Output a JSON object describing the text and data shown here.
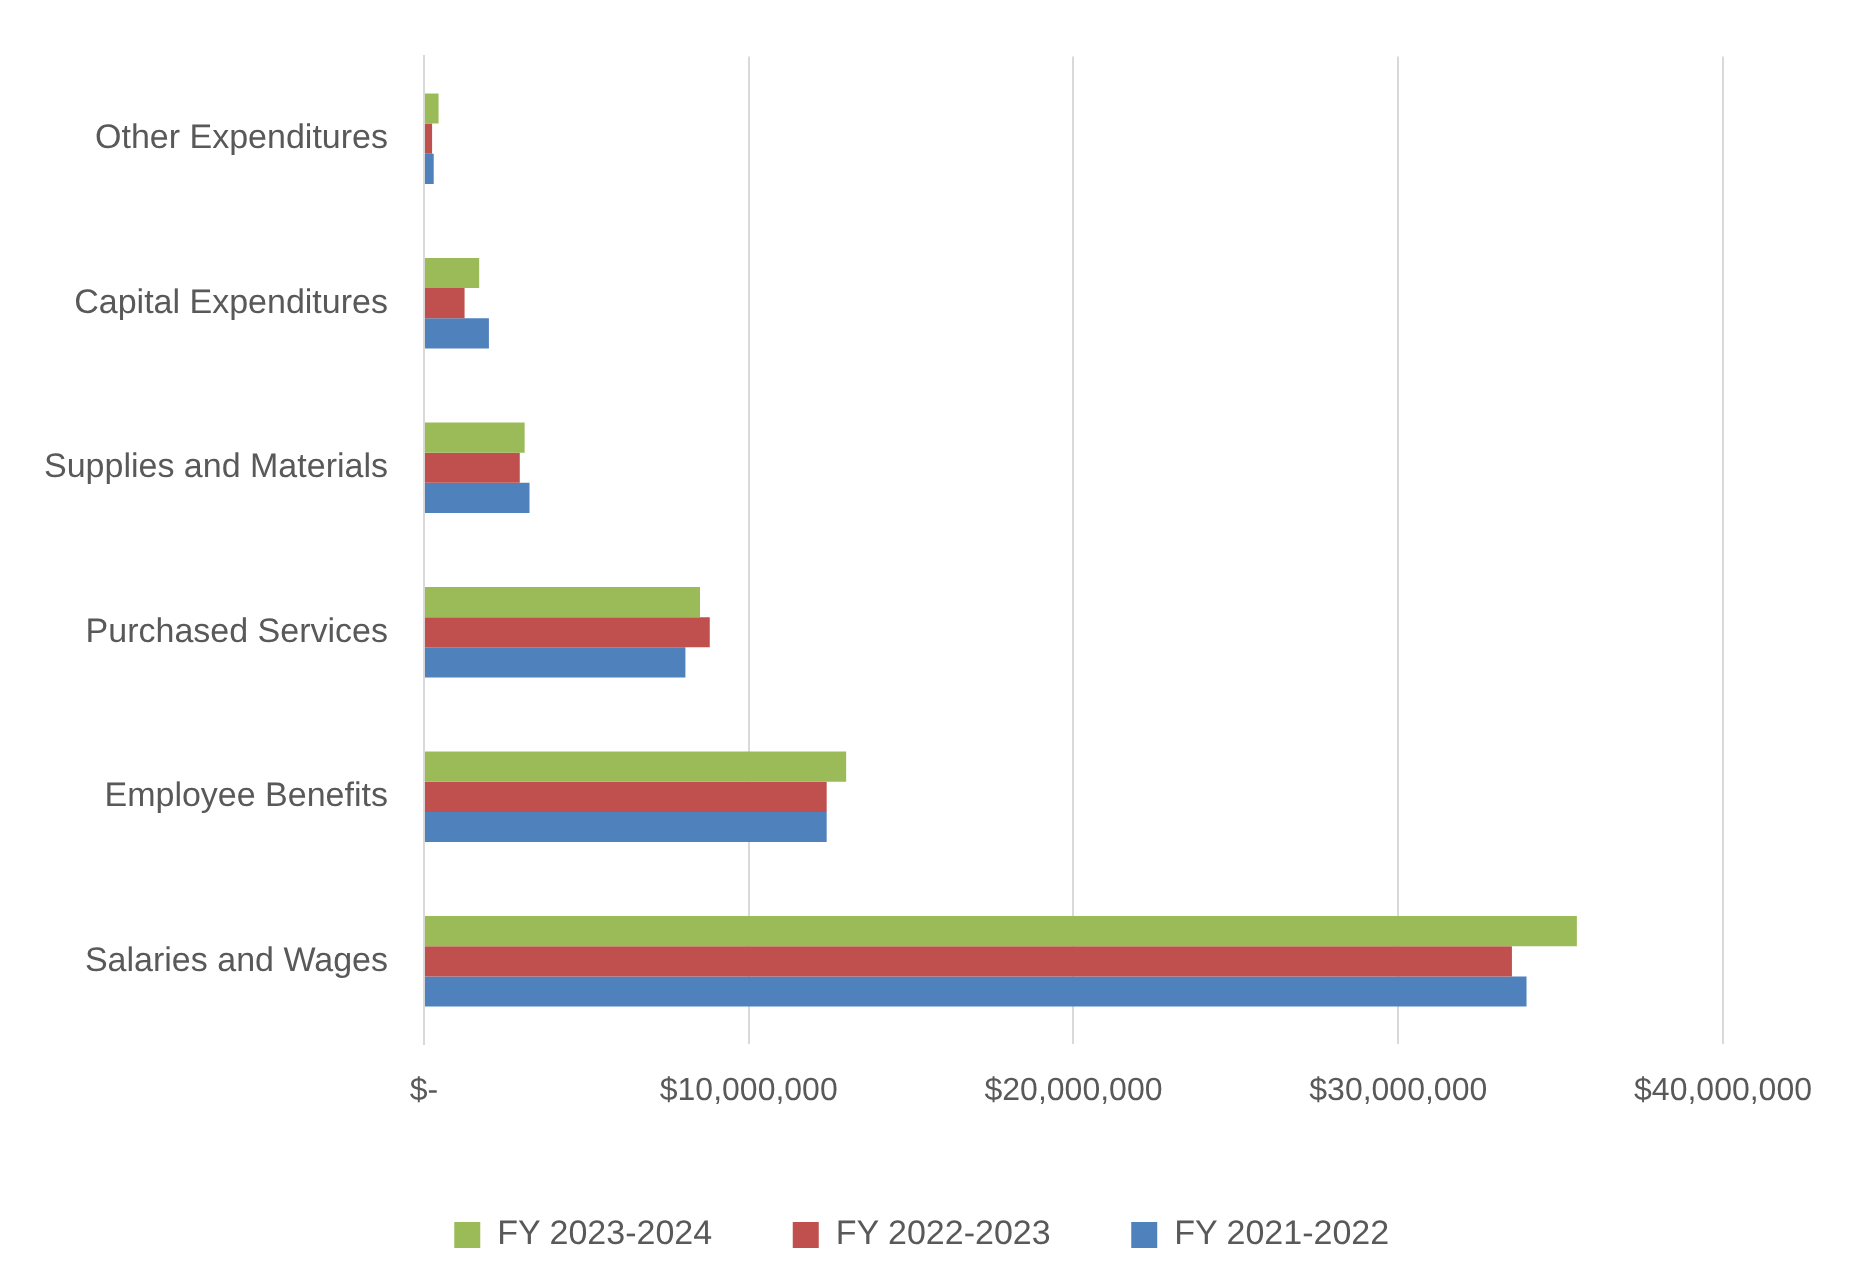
{
  "chart_data": {
    "type": "bar",
    "orientation": "horizontal",
    "categories": [
      "Other Expenditures",
      "Capital Expenditures",
      "Supplies and Materials",
      "Purchased Services",
      "Employee Benefits",
      "Salaries and Wages"
    ],
    "series": [
      {
        "name": "FY 2023-2024",
        "color": "#9bbb59",
        "values": [
          450000,
          1700000,
          3100000,
          8500000,
          13000000,
          35500000
        ]
      },
      {
        "name": "FY 2022-2023",
        "color": "#c0504d",
        "values": [
          250000,
          1250000,
          2950000,
          8800000,
          12400000,
          33500000
        ]
      },
      {
        "name": "FY 2021-2022",
        "color": "#4f81bd",
        "values": [
          300000,
          2000000,
          3250000,
          8050000,
          12400000,
          33950000
        ]
      }
    ],
    "xlim": [
      0,
      40000000
    ],
    "xticks": [
      {
        "value": 0,
        "label": "$-"
      },
      {
        "value": 10000000,
        "label": "$10,000,000"
      },
      {
        "value": 20000000,
        "label": "$20,000,000"
      },
      {
        "value": 30000000,
        "label": "$30,000,000"
      },
      {
        "value": 40000000,
        "label": "$40,000,000"
      }
    ],
    "grid": "x",
    "legend": "bottom"
  }
}
